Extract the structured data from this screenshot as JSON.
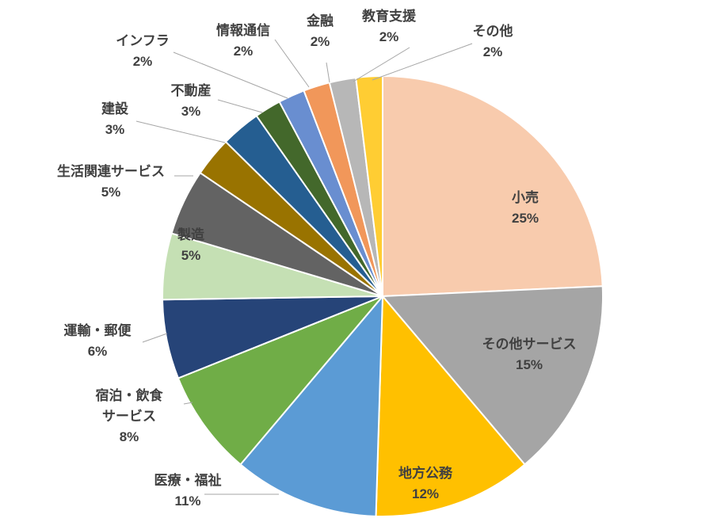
{
  "chart_data": {
    "type": "pie",
    "slices": [
      {
        "name": "小売",
        "value": 25,
        "label": "25%",
        "color": "#F8CBAD"
      },
      {
        "name": "その他サービス",
        "value": 15,
        "label": "15%",
        "color": "#A5A5A5"
      },
      {
        "name": "地方公務",
        "value": 12,
        "label": "12%",
        "color": "#FFC000"
      },
      {
        "name": "医療・福祉",
        "value": 11,
        "label": "11%",
        "color": "#5B9BD5"
      },
      {
        "name": "宿泊・飲食\nサービス",
        "value": 8,
        "label": "8%",
        "color": "#70AD47"
      },
      {
        "name": "運輸・郵便",
        "value": 6,
        "label": "6%",
        "color": "#264478"
      },
      {
        "name": "製造",
        "value": 5,
        "label": "5%",
        "color": "#C5E0B4"
      },
      {
        "name": "生活関連サービス",
        "value": 5,
        "label": "5%",
        "color": "#636363"
      },
      {
        "name": "建設",
        "value": 3,
        "label": "3%",
        "color": "#997300"
      },
      {
        "name": "不動産",
        "value": 3,
        "label": "3%",
        "color": "#255E91"
      },
      {
        "name": "インフラ",
        "value": 2,
        "label": "2%",
        "color": "#43682B"
      },
      {
        "name": "情報通信",
        "value": 2,
        "label": "2%",
        "color": "#698ED0"
      },
      {
        "name": "金融",
        "value": 2,
        "label": "2%",
        "color": "#F1975A"
      },
      {
        "name": "教育支援",
        "value": 2,
        "label": "2%",
        "color": "#B7B7B7"
      },
      {
        "name": "その他",
        "value": 2,
        "label": "2%",
        "color": "#FFCD33"
      }
    ],
    "start": "12 o'clock",
    "direction": "clockwise",
    "legend": "none"
  }
}
